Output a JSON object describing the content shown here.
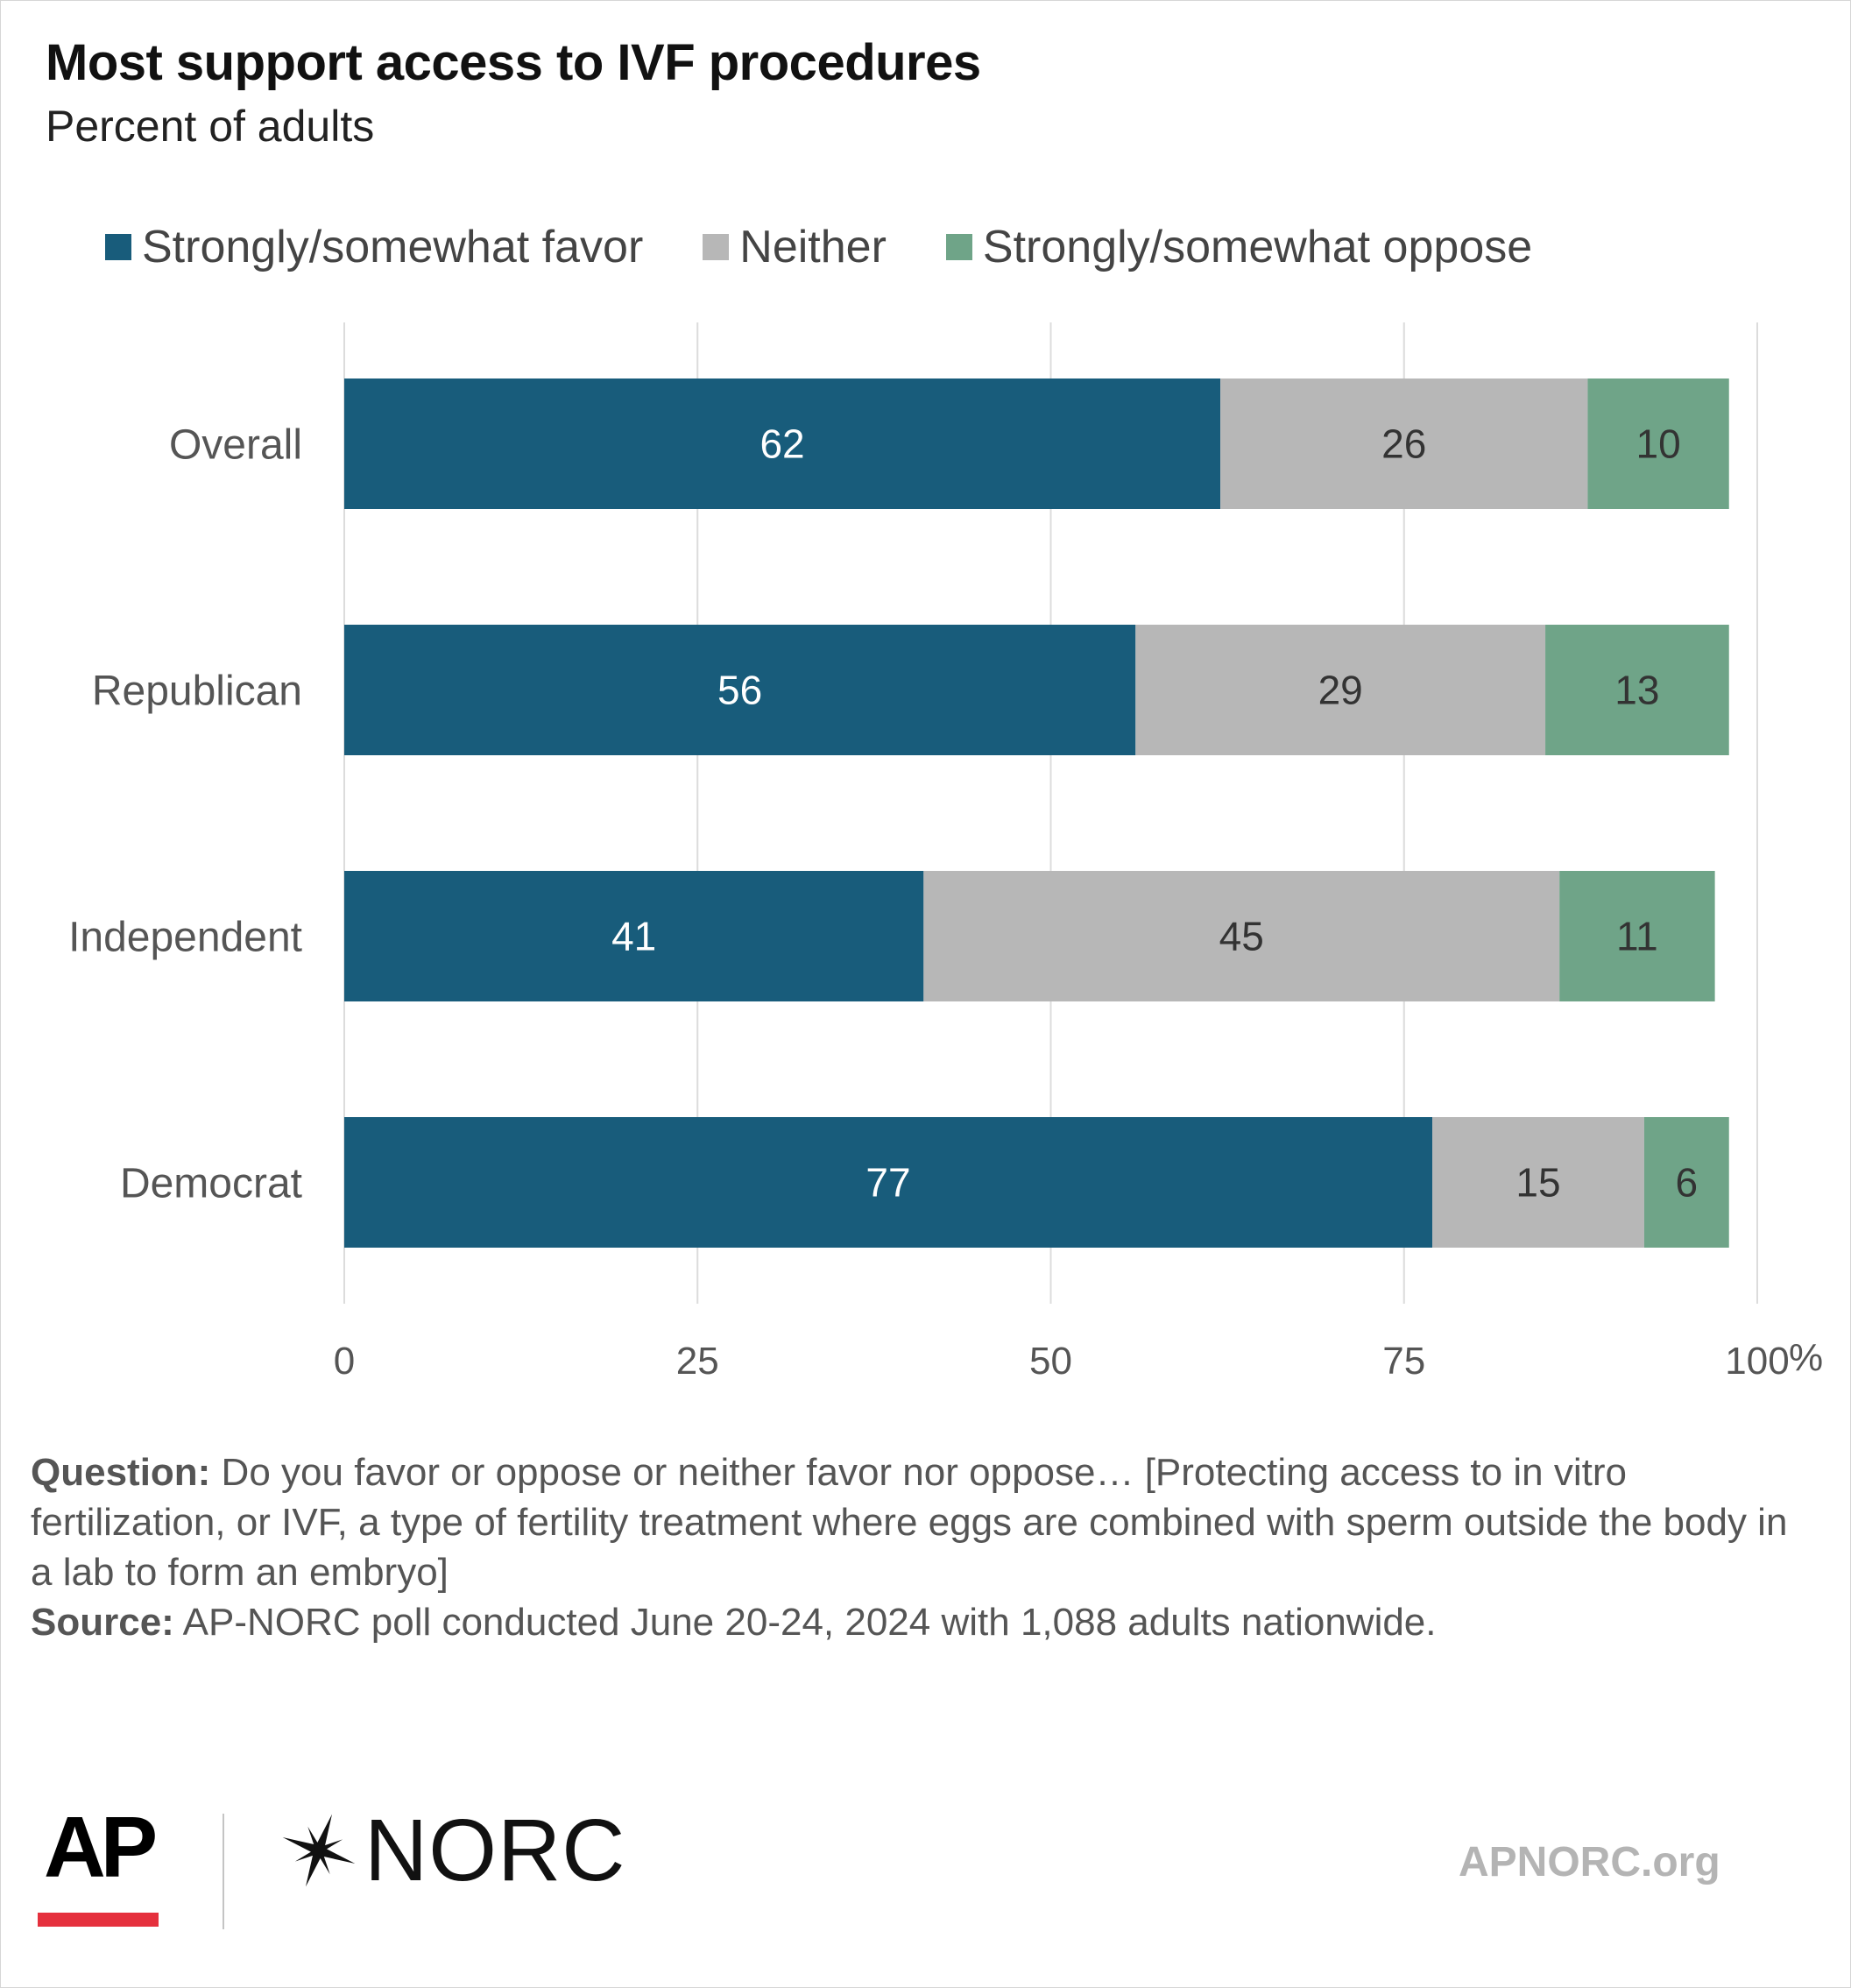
{
  "header": {
    "title": "Most support access to IVF procedures",
    "subtitle": "Percent of adults"
  },
  "colors": {
    "favor": "#185c7b",
    "neither": "#b7b7b7",
    "oppose": "#6fa488",
    "gridline": "#dcdcdc",
    "ap_red": "#e5303d"
  },
  "legend": [
    {
      "key": "favor",
      "label": "Strongly/somewhat favor"
    },
    {
      "key": "neither",
      "label": "Neither"
    },
    {
      "key": "oppose",
      "label": "Strongly/somewhat oppose"
    }
  ],
  "chart_data": {
    "type": "bar",
    "orientation": "horizontal",
    "stacked": true,
    "title": "Most support access to IVF procedures",
    "subtitle": "Percent of adults",
    "categories": [
      "Overall",
      "Republican",
      "Independent",
      "Democrat"
    ],
    "series": [
      {
        "name": "Strongly/somewhat favor",
        "key": "favor",
        "values": [
          62,
          56,
          41,
          77
        ],
        "label_color": "#ffffff"
      },
      {
        "name": "Neither",
        "key": "neither",
        "values": [
          26,
          29,
          45,
          15
        ],
        "label_color": "#333333"
      },
      {
        "name": "Strongly/somewhat oppose",
        "key": "oppose",
        "values": [
          10,
          13,
          11,
          6
        ],
        "label_color": "#333333"
      }
    ],
    "xlim": [
      0,
      100
    ],
    "xticks": [
      0,
      25,
      50,
      75,
      100
    ],
    "xunit": "%",
    "grid": true,
    "legend_position": "top"
  },
  "notes": {
    "question_label": "Question:",
    "question_text": " Do you favor or oppose or neither favor nor oppose… [Protecting access to in vitro fertilization, or IVF, a type of fertility treatment where eggs are combined with sperm outside the body in a lab to form an embryo]",
    "source_label": "Source:",
    "source_text": " AP-NORC poll conducted June 20-24, 2024 with 1,088 adults nationwide."
  },
  "footer": {
    "ap_logo": "AP",
    "norc_logo": "NORC",
    "norc_icon": "star-icon",
    "site": "APNORC.org"
  }
}
